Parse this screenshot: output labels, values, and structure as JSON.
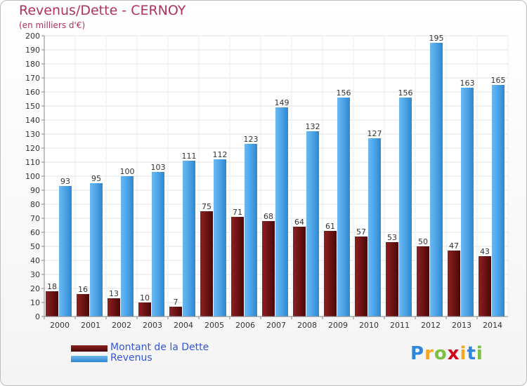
{
  "header": {
    "title": "Revenus/Dette - CERNOY",
    "subtitle": "(en milliers d'€)"
  },
  "chart_data": {
    "type": "bar",
    "title": "Revenus/Dette - CERNOY",
    "subtitle": "(en milliers d'€)",
    "categories": [
      "2000",
      "2001",
      "2002",
      "2003",
      "2004",
      "2005",
      "2006",
      "2007",
      "2008",
      "2009",
      "2010",
      "2011",
      "2012",
      "2013",
      "2014"
    ],
    "series": [
      {
        "name": "Montant de la Dette",
        "color": "#7a1a1a",
        "values": [
          18,
          16,
          13,
          10,
          7,
          75,
          71,
          68,
          64,
          61,
          57,
          53,
          50,
          47,
          43
        ]
      },
      {
        "name": "Revenus",
        "color": "#4aa3e8",
        "values": [
          93,
          95,
          100,
          103,
          111,
          112,
          123,
          149,
          132,
          156,
          127,
          156,
          195,
          163,
          165
        ]
      }
    ],
    "ylim": [
      0,
      200
    ],
    "yticks": [
      0,
      10,
      20,
      30,
      40,
      50,
      60,
      70,
      80,
      90,
      100,
      110,
      120,
      130,
      140,
      150,
      160,
      170,
      180,
      190,
      200
    ],
    "grid": true,
    "legend_position": "bottom-left"
  },
  "legend": {
    "items": [
      {
        "label": "Montant de la Dette"
      },
      {
        "label": "Revenus"
      }
    ]
  },
  "logo": {
    "letters": [
      "P",
      "r",
      "o",
      "x",
      "i",
      "t",
      "i"
    ],
    "colors": [
      "#2e86de",
      "#f5a623",
      "#7bc043",
      "#d0021b",
      "#f5a623",
      "#2e86de",
      "#7bc043"
    ]
  }
}
